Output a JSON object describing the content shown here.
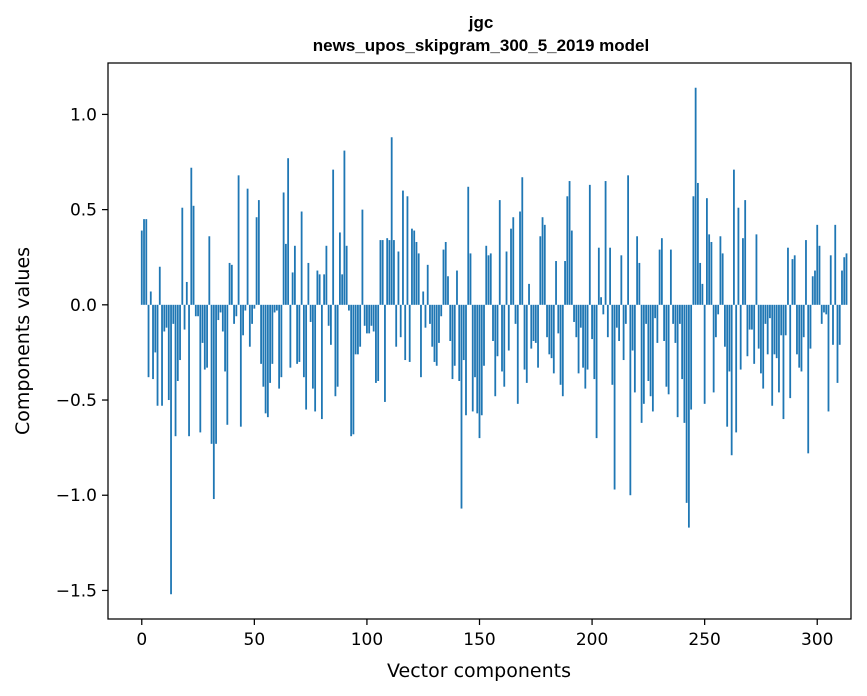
{
  "chart_data": {
    "type": "bar",
    "title": "jgc",
    "subtitle": "news_upos_skipgram_300_5_2019 model",
    "xlabel": "Vector components",
    "ylabel": "Components values",
    "xlim": [
      -15,
      315
    ],
    "ylim": [
      -1.65,
      1.27
    ],
    "xticks": [
      0,
      50,
      100,
      150,
      200,
      250,
      300
    ],
    "xtick_labels": [
      "0",
      "50",
      "100",
      "150",
      "200",
      "250",
      "300"
    ],
    "yticks": [
      -1.5,
      -1.0,
      -0.5,
      0.0,
      0.5,
      1.0
    ],
    "ytick_labels": [
      "−1.5",
      "−1.0",
      "−0.5",
      "0.0",
      "0.5",
      "1.0"
    ],
    "bar_color": "#1f77b4",
    "grid": false,
    "values": [
      0.39,
      0.45,
      0.45,
      -0.38,
      0.07,
      -0.39,
      -0.25,
      -0.53,
      0.2,
      -0.53,
      -0.14,
      -0.12,
      -0.5,
      -1.52,
      -0.1,
      -0.69,
      -0.4,
      -0.29,
      0.51,
      -0.13,
      0.12,
      -0.69,
      0.72,
      0.52,
      -0.06,
      -0.06,
      -0.67,
      -0.2,
      -0.34,
      -0.33,
      0.36,
      -0.73,
      -1.02,
      -0.73,
      -0.08,
      -0.04,
      -0.14,
      -0.35,
      -0.63,
      0.22,
      0.21,
      -0.1,
      -0.06,
      0.68,
      -0.64,
      -0.16,
      -0.03,
      0.61,
      -0.22,
      -0.1,
      -0.02,
      0.46,
      0.55,
      -0.31,
      -0.43,
      -0.57,
      -0.59,
      -0.41,
      -0.31,
      -0.04,
      -0.03,
      -0.44,
      -0.38,
      0.59,
      0.32,
      0.77,
      -0.33,
      0.17,
      0.31,
      -0.31,
      -0.3,
      0.49,
      -0.38,
      -0.55,
      0.22,
      -0.09,
      -0.44,
      -0.56,
      0.18,
      0.16,
      -0.6,
      0.16,
      0.31,
      -0.11,
      -0.21,
      0.71,
      -0.48,
      -0.43,
      0.38,
      0.16,
      0.81,
      0.31,
      -0.03,
      -0.69,
      -0.68,
      -0.26,
      -0.26,
      -0.22,
      0.5,
      -0.11,
      -0.15,
      -0.15,
      -0.11,
      -0.14,
      -0.41,
      -0.4,
      0.34,
      0.34,
      -0.51,
      0.35,
      0.34,
      0.88,
      0.34,
      -0.22,
      0.28,
      -0.17,
      0.6,
      -0.29,
      0.57,
      -0.3,
      0.4,
      0.39,
      0.33,
      0.27,
      -0.38,
      0.07,
      -0.12,
      0.21,
      -0.1,
      -0.22,
      -0.3,
      -0.32,
      -0.2,
      -0.06,
      0.29,
      0.33,
      0.15,
      -0.19,
      -0.39,
      -0.32,
      0.18,
      -0.4,
      -1.07,
      -0.29,
      -0.58,
      0.62,
      0.27,
      -0.56,
      -0.38,
      -0.57,
      -0.7,
      -0.58,
      -0.32,
      0.31,
      0.26,
      0.27,
      -0.19,
      -0.48,
      -0.27,
      0.55,
      -0.35,
      -0.43,
      0.28,
      -0.24,
      0.4,
      0.46,
      -0.1,
      -0.52,
      0.49,
      0.67,
      -0.34,
      -0.41,
      0.11,
      -0.23,
      -0.19,
      -0.2,
      -0.33,
      0.36,
      0.46,
      0.42,
      -0.17,
      -0.26,
      -0.28,
      -0.36,
      0.23,
      -0.15,
      -0.42,
      -0.48,
      0.23,
      0.57,
      0.65,
      0.39,
      -0.09,
      -0.17,
      -0.36,
      -0.12,
      -0.33,
      -0.44,
      -0.34,
      0.63,
      -0.18,
      -0.39,
      -0.7,
      0.3,
      0.04,
      -0.05,
      0.65,
      -0.17,
      0.3,
      -0.42,
      -0.97,
      -0.12,
      -0.19,
      0.26,
      -0.29,
      -0.1,
      0.68,
      -1.0,
      -0.24,
      -0.46,
      0.36,
      0.22,
      -0.62,
      -0.52,
      -0.1,
      -0.4,
      -0.48,
      -0.56,
      -0.07,
      -0.2,
      0.29,
      0.35,
      -0.19,
      -0.43,
      -0.47,
      0.29,
      -0.1,
      -0.2,
      -0.59,
      -0.1,
      -0.39,
      -0.62,
      -1.04,
      -1.17,
      -0.55,
      0.57,
      1.14,
      0.64,
      0.22,
      0.11,
      -0.52,
      0.56,
      0.37,
      0.33,
      -0.46,
      -0.17,
      -0.05,
      0.36,
      0.27,
      -0.22,
      -0.64,
      -0.35,
      -0.79,
      0.71,
      -0.67,
      0.51,
      -0.34,
      0.35,
      0.55,
      -0.27,
      -0.13,
      -0.13,
      -0.31,
      0.37,
      -0.23,
      -0.36,
      -0.44,
      -0.1,
      -0.26,
      -0.07,
      -0.53,
      -0.26,
      -0.28,
      -0.46,
      -0.16,
      -0.6,
      -0.16,
      0.3,
      -0.49,
      0.24,
      0.26,
      -0.26,
      -0.33,
      -0.35,
      -0.17,
      0.34,
      -0.78,
      -0.23,
      0.15,
      0.18,
      0.42,
      0.31,
      -0.1,
      -0.04,
      -0.05,
      -0.56,
      0.26,
      -0.21,
      0.42,
      -0.41,
      -0.21,
      0.18,
      0.25,
      0.27
    ]
  }
}
